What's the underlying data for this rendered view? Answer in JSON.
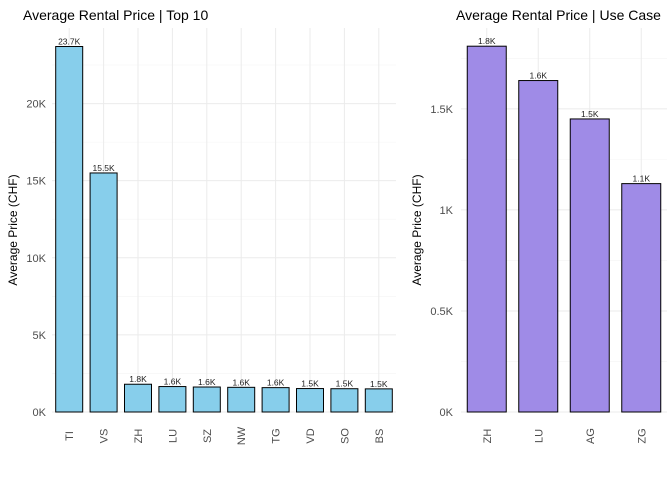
{
  "chart_data": [
    {
      "type": "bar",
      "title": "Average Rental Price | Top 10",
      "xlabel": "",
      "ylabel": "Average Price (CHF)",
      "categories": [
        "TI",
        "VS",
        "ZH",
        "LU",
        "SZ",
        "NW",
        "TG",
        "VD",
        "SO",
        "BS"
      ],
      "values": [
        23700,
        15500,
        1800,
        1650,
        1620,
        1600,
        1580,
        1520,
        1510,
        1500
      ],
      "data_labels": [
        "23.7K",
        "15.5K",
        "1.8K",
        "1.6K",
        "1.6K",
        "1.6K",
        "1.6K",
        "1.5K",
        "1.5K",
        "1.5K"
      ],
      "yticks": [
        0,
        5000,
        10000,
        15000,
        20000
      ],
      "ytick_labels": [
        "0K",
        "5K",
        "10K",
        "15K",
        "20K"
      ],
      "ylim": [
        0,
        24900
      ],
      "bar_color": "#87ceeb",
      "grid": true
    },
    {
      "type": "bar",
      "title": "Average Rental Price | Use Case",
      "xlabel": "",
      "ylabel": "Average Price (CHF)",
      "categories": [
        "ZH",
        "LU",
        "AG",
        "ZG"
      ],
      "values": [
        1810,
        1640,
        1450,
        1130
      ],
      "data_labels": [
        "1.8K",
        "1.6K",
        "1.5K",
        "1.1K"
      ],
      "yticks": [
        0,
        500,
        1000,
        1500
      ],
      "ytick_labels": [
        "0K",
        "0.5K",
        "1K",
        "1.5K"
      ],
      "ylim": [
        0,
        1900
      ],
      "bar_color": "#9f8be7",
      "grid": true
    }
  ]
}
